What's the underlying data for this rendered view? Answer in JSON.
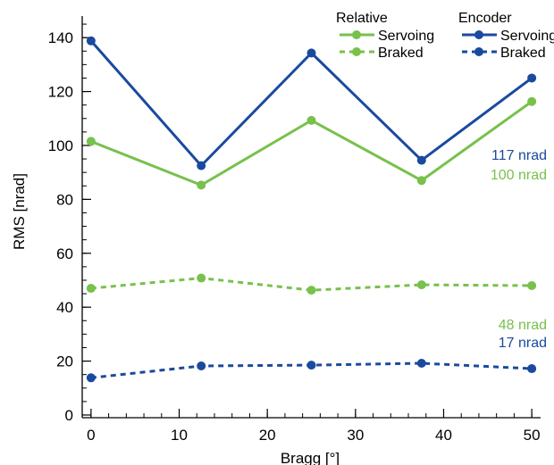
{
  "chart_data": {
    "type": "line",
    "xlabel": "Bragg [°]",
    "ylabel": "RMS [nrad]",
    "xlim": [
      -1,
      51
    ],
    "ylim": [
      -1,
      148
    ],
    "x_ticks": [
      0,
      10,
      20,
      30,
      40,
      50
    ],
    "x_minor_step": 2,
    "y_ticks": [
      0,
      20,
      40,
      60,
      80,
      100,
      120,
      140
    ],
    "y_minor_step": 5,
    "grid": false,
    "legend": {
      "placement": "top-right",
      "groups": [
        {
          "title": "Relative",
          "entries": [
            "Servoing",
            "Braked"
          ]
        },
        {
          "title": "Encoder",
          "entries": [
            "Servoing",
            "Braked"
          ]
        }
      ]
    },
    "x": [
      0,
      12.5,
      25,
      37.5,
      50
    ],
    "series": [
      {
        "group": "Relative",
        "name": "Servoing",
        "color": "#77c14c",
        "dash": false,
        "values": [
          101.5,
          85.3,
          109.3,
          87.0,
          116.3
        ]
      },
      {
        "group": "Relative",
        "name": "Braked",
        "color": "#77c14c",
        "dash": true,
        "values": [
          47.0,
          50.8,
          46.3,
          48.3,
          48.0
        ]
      },
      {
        "group": "Encoder",
        "name": "Servoing",
        "color": "#1a4a9e",
        "dash": false,
        "values": [
          138.8,
          92.5,
          134.3,
          94.5,
          125.0
        ]
      },
      {
        "group": "Encoder",
        "name": "Braked",
        "color": "#1a4a9e",
        "dash": true,
        "values": [
          13.8,
          18.2,
          18.5,
          19.2,
          17.2
        ]
      }
    ],
    "annotations": [
      {
        "text": "117 nrad",
        "color": "#1a4a9e",
        "anchor_value": 117
      },
      {
        "text": "100 nrad",
        "color": "#77c14c",
        "anchor_value": 100
      },
      {
        "text": "48 nrad",
        "color": "#77c14c",
        "anchor_value": 48
      },
      {
        "text": "17 nrad",
        "color": "#1a4a9e",
        "anchor_value": 17
      }
    ]
  }
}
